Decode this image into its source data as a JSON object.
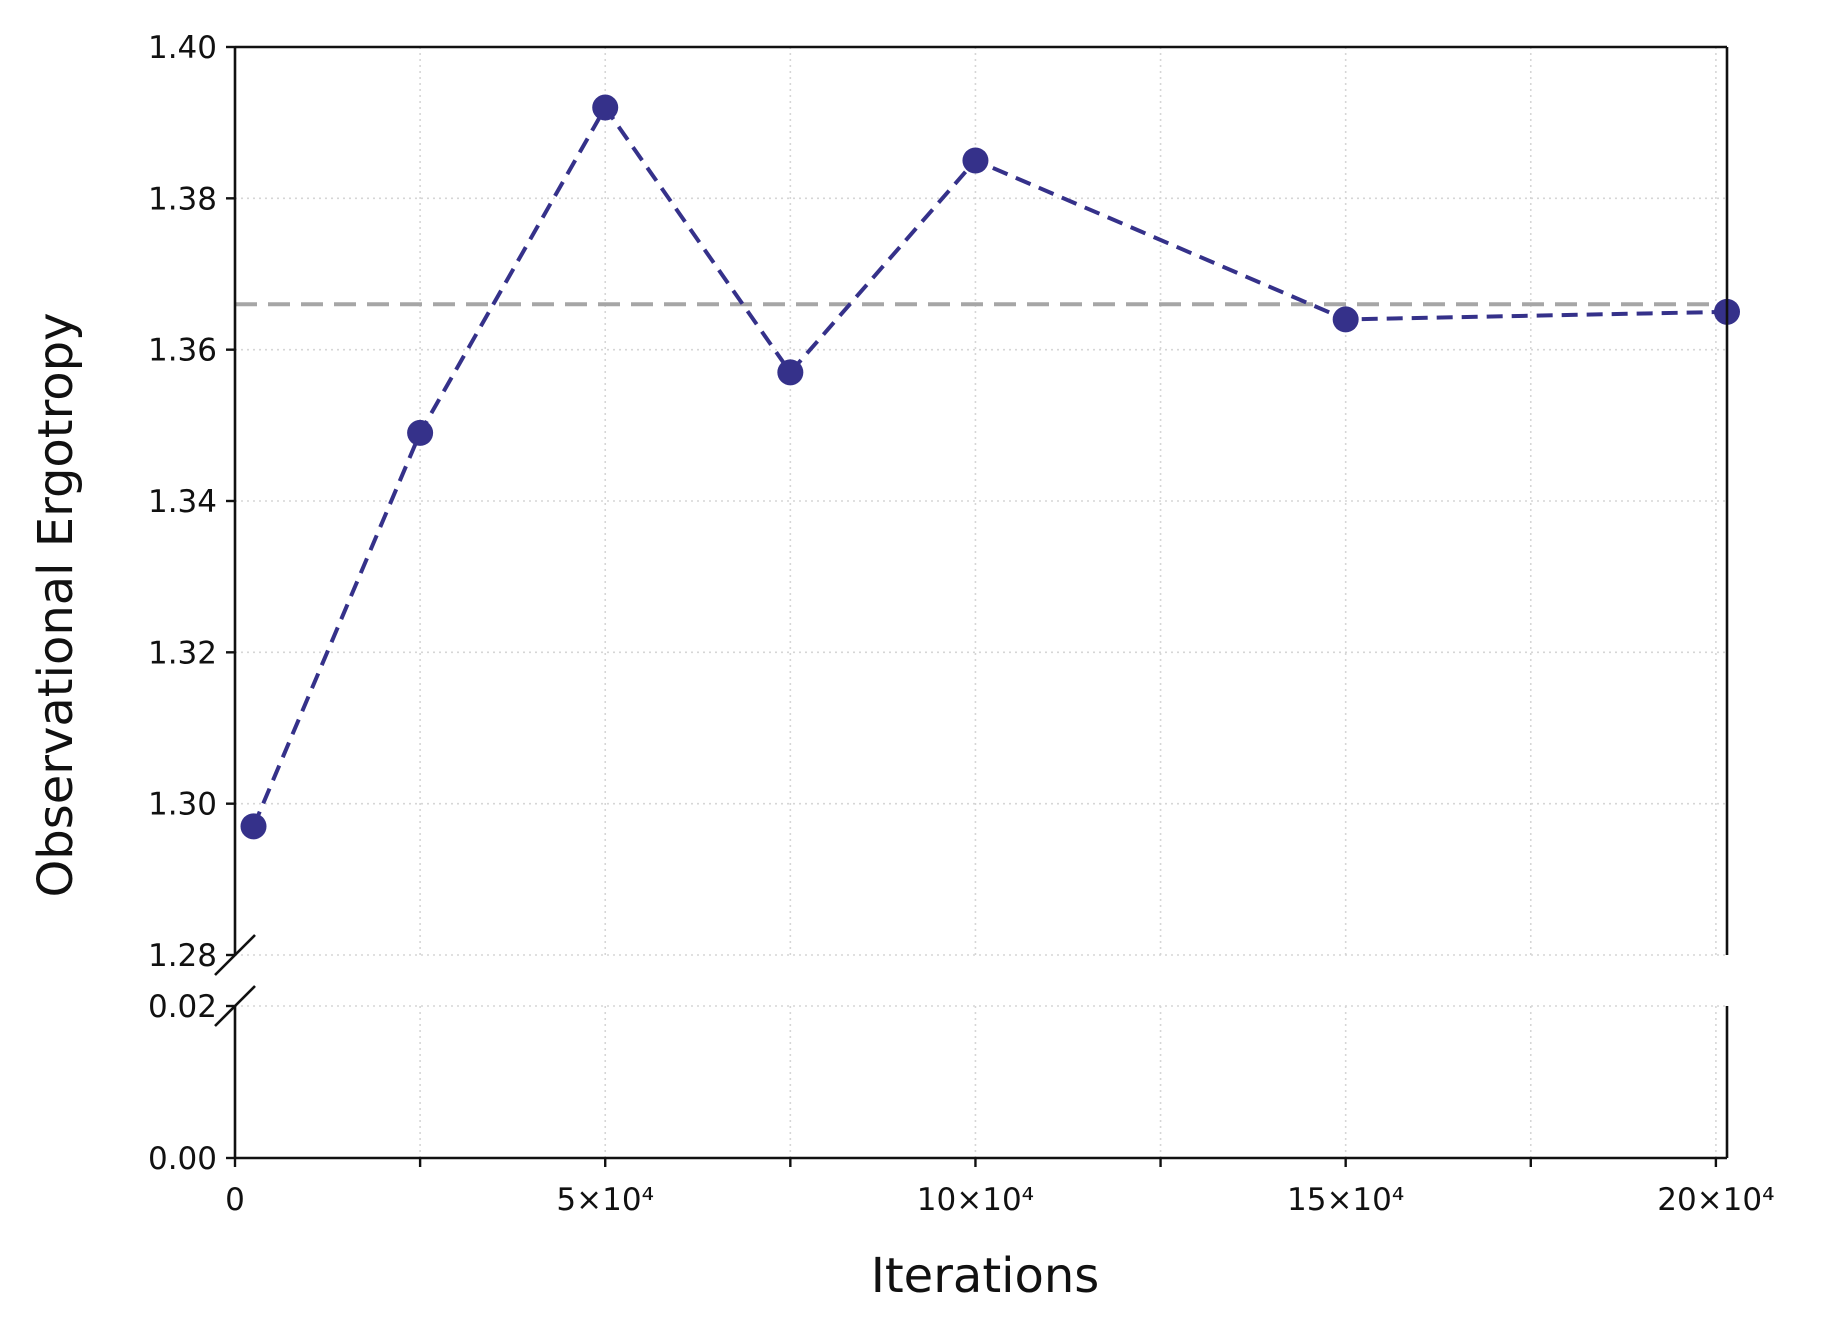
{
  "chart_data": {
    "type": "line",
    "title": "",
    "xlabel": "Iterations",
    "ylabel": "Observational Ergotropy",
    "x_ticks": [
      {
        "value": 0,
        "label": "0"
      },
      {
        "value": 50000,
        "label": "5×10⁴"
      },
      {
        "value": 100000,
        "label": "10×10⁴"
      },
      {
        "value": 150000,
        "label": "15×10⁴"
      },
      {
        "value": 200000,
        "label": "20×10⁴"
      }
    ],
    "x_minor_ticks": [
      25000,
      75000,
      125000,
      175000
    ],
    "xlim": [
      0,
      201500
    ],
    "y_axis_broken": true,
    "y_lower_segment": {
      "ylim": [
        0.0,
        0.02
      ],
      "ticks": [
        {
          "value": 0.0,
          "label": "0.00"
        },
        {
          "value": 0.02,
          "label": "0.02"
        }
      ]
    },
    "y_upper_segment": {
      "ylim": [
        1.28,
        1.4
      ],
      "ticks": [
        {
          "value": 1.28,
          "label": "1.28"
        },
        {
          "value": 1.3,
          "label": "1.30"
        },
        {
          "value": 1.32,
          "label": "1.32"
        },
        {
          "value": 1.34,
          "label": "1.34"
        },
        {
          "value": 1.36,
          "label": "1.36"
        },
        {
          "value": 1.38,
          "label": "1.38"
        },
        {
          "value": 1.4,
          "label": "1.40"
        }
      ]
    },
    "grid": true,
    "series": [
      {
        "x": [
          2500,
          25000,
          50000,
          75000,
          100000,
          150000,
          201500
        ],
        "y": [
          1.297,
          1.349,
          1.392,
          1.357,
          1.385,
          1.364,
          1.365
        ],
        "color": "#35318a",
        "line_style": "dashed",
        "marker": "circle"
      }
    ],
    "reference_line": {
      "y": 1.366,
      "color": "#a6a6a6",
      "line_style": "dashed"
    }
  }
}
